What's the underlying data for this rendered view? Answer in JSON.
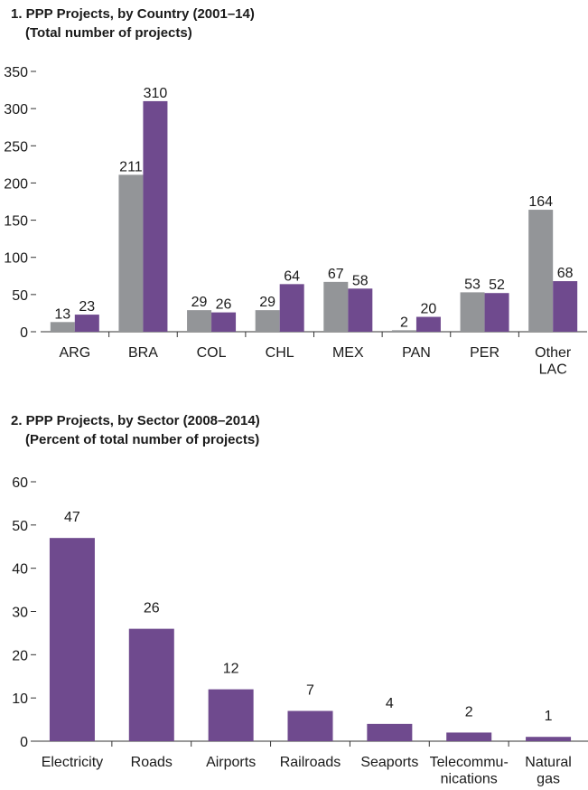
{
  "chart_data": [
    {
      "type": "bar",
      "title": "1. PPP Projects, by Country (2001–14)",
      "subtitle": "(Total number of projects)",
      "categories": [
        "ARG",
        "BRA",
        "COL",
        "CHL",
        "MEX",
        "PAN",
        "PER",
        "Other\nLAC"
      ],
      "series": [
        {
          "color": "#939598",
          "values": [
            13,
            211,
            29,
            29,
            67,
            2,
            53,
            164
          ]
        },
        {
          "color": "#6f4a8e",
          "values": [
            23,
            310,
            26,
            64,
            58,
            20,
            52,
            68
          ]
        }
      ],
      "ylim": [
        0,
        350
      ],
      "yticks": [
        0,
        50,
        100,
        150,
        200,
        250,
        300,
        350
      ]
    },
    {
      "type": "bar",
      "title": "2. PPP Projects, by Sector (2008–2014)",
      "subtitle": "(Percent of total number of projects)",
      "categories": [
        "Electricity",
        "Roads",
        "Airports",
        "Railroads",
        "Seaports",
        "Telecommu-\nnications",
        "Natural\ngas"
      ],
      "series": [
        {
          "color": "#6f4a8e",
          "values": [
            47,
            26,
            12,
            7,
            4,
            2,
            1
          ]
        }
      ],
      "ylim": [
        0,
        60
      ],
      "yticks": [
        0,
        10,
        20,
        30,
        40,
        50,
        60
      ]
    }
  ]
}
